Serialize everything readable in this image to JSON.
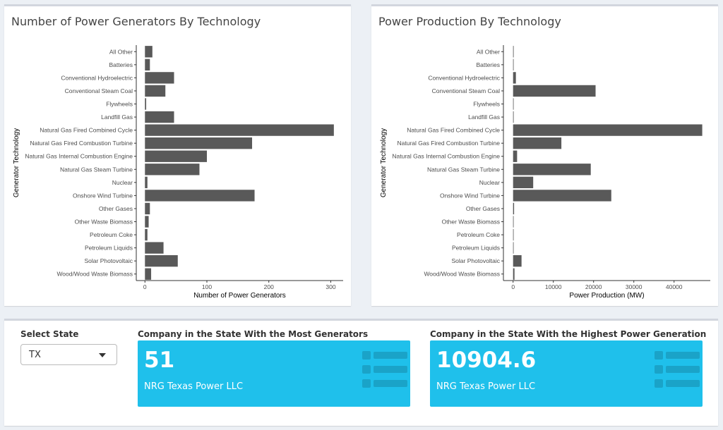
{
  "left_panel": {
    "title": "Number of Power Generators By Technology"
  },
  "right_panel": {
    "title": "Power Production By Technology"
  },
  "chart_data": [
    {
      "type": "bar",
      "orientation": "horizontal",
      "title": "Number of Power Generators By Technology",
      "xlabel": "Number of Power Generators",
      "ylabel": "Generator Technology",
      "xlim": [
        -14,
        320
      ],
      "xticks": [
        0,
        100,
        200,
        300
      ],
      "xtick_labels": [
        "0",
        "100",
        "200",
        "300"
      ],
      "categories": [
        "All Other",
        "Batteries",
        "Conventional Hydroelectric",
        "Conventional Steam Coal",
        "Flywheels",
        "Landfill Gas",
        "Natural Gas Fired Combined Cycle",
        "Natural Gas Fired Combustion Turbine",
        "Natural Gas Internal Combustion Engine",
        "Natural Gas Steam Turbine",
        "Nuclear",
        "Onshore Wind Turbine",
        "Other Gases",
        "Other Waste Biomass",
        "Petroleum Coke",
        "Petroleum Liquids",
        "Solar Photovoltaic",
        "Wood/Wood Waste Biomass"
      ],
      "values": [
        12,
        8,
        47,
        33,
        2,
        47,
        305,
        173,
        100,
        88,
        4,
        177,
        8,
        6,
        4,
        30,
        53,
        10
      ]
    },
    {
      "type": "bar",
      "orientation": "horizontal",
      "title": "Power Production By Technology",
      "xlabel": "Power Production (MW)",
      "ylabel": "Generator Technology",
      "xlim": [
        -2400,
        49000
      ],
      "xticks": [
        0,
        10000,
        20000,
        30000,
        40000
      ],
      "xtick_labels": [
        "0",
        "10000",
        "20000",
        "30000",
        "40000"
      ],
      "categories": [
        "All Other",
        "Batteries",
        "Conventional Hydroelectric",
        "Conventional Steam Coal",
        "Flywheels",
        "Landfill Gas",
        "Natural Gas Fired Combined Cycle",
        "Natural Gas Fired Combustion Turbine",
        "Natural Gas Internal Combustion Engine",
        "Natural Gas Steam Turbine",
        "Nuclear",
        "Onshore Wind Turbine",
        "Other Gases",
        "Other Waste Biomass",
        "Petroleum Coke",
        "Petroleum Liquids",
        "Solar Photovoltaic",
        "Wood/Wood Waste Biomass"
      ],
      "values": [
        150,
        100,
        700,
        20500,
        5,
        150,
        47000,
        12000,
        1000,
        19300,
        5000,
        24400,
        250,
        30,
        20,
        30,
        2100,
        350
      ]
    }
  ],
  "controls": {
    "select_label": "Select State",
    "selected_state": "TX"
  },
  "value_boxes": {
    "most_generators": {
      "heading": "Company in the State With the Most Generators",
      "value": "51",
      "company": "NRG Texas Power LLC"
    },
    "highest_generation": {
      "heading": "Company in the State With the Highest Power Generation",
      "value": "10904.6",
      "company": "NRG Texas Power LLC"
    }
  },
  "colors": {
    "bar": "#595959",
    "value_box": "#1fc0eb",
    "background": "#ecf0f5"
  },
  "icons": {
    "value_box_icon": "list-icon"
  }
}
